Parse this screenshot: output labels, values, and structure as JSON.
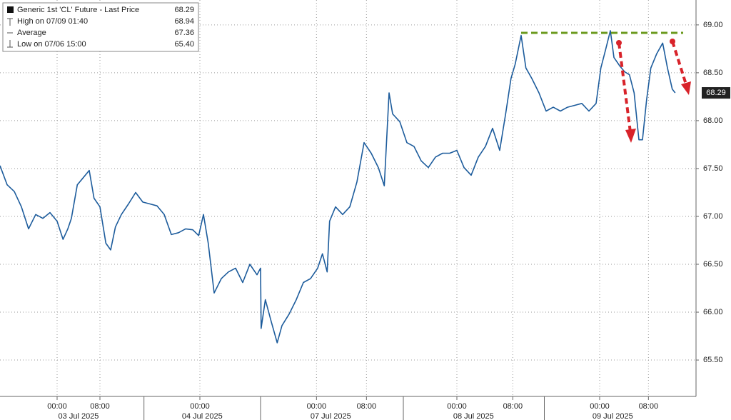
{
  "chart_data": {
    "type": "line",
    "series": [
      {
        "name": "Generic 1st 'CL' Future - Last Price",
        "color": "#1d5c9c",
        "values": [
          67.53,
          67.33,
          67.26,
          67.1,
          66.87,
          67.02,
          66.98,
          67.04,
          66.95,
          66.76,
          66.87,
          66.98,
          67.33,
          67.39,
          67.48,
          67.19,
          67.1,
          66.72,
          66.65,
          66.89,
          67.02,
          67.13,
          67.25,
          67.15,
          67.13,
          67.11,
          67.02,
          66.81,
          66.83,
          66.87,
          66.86,
          66.8,
          67.02,
          66.72,
          66.2,
          66.35,
          66.42,
          66.46,
          66.31,
          66.5,
          66.39,
          66.46,
          65.83,
          66.13,
          65.9,
          65.68,
          65.86,
          65.98,
          66.13,
          66.31,
          66.35,
          66.46,
          66.61,
          66.42,
          66.95,
          67.1,
          67.02,
          67.1,
          67.36,
          67.77,
          67.66,
          67.51,
          67.32,
          68.29,
          68.07,
          67.99,
          67.77,
          67.73,
          67.58,
          67.51,
          67.62,
          67.66,
          67.66,
          67.69,
          67.51,
          67.43,
          67.62,
          67.73,
          67.92,
          67.69,
          68.07,
          68.44,
          68.59,
          68.89,
          68.55,
          68.44,
          68.29,
          68.1,
          68.14,
          68.1,
          68.14,
          68.16,
          68.18,
          68.1,
          68.18,
          68.55,
          68.74,
          68.94,
          68.66,
          68.57,
          68.51,
          68.48,
          68.29,
          67.8,
          67.8,
          68.22,
          68.55,
          68.7,
          68.81,
          68.55,
          68.33,
          68.29
        ]
      }
    ],
    "x": [
      -9.6,
      -8.4,
      -7.2,
      -6.0,
      -4.8,
      -3.6,
      -2.4,
      -1.2,
      0,
      1.0,
      1.8,
      2.4,
      3.4,
      4.2,
      5.4,
      6.2,
      7.2,
      8.2,
      9.0,
      9.8,
      10.8,
      12.0,
      13.2,
      14.4,
      15.6,
      16.8,
      18.0,
      19.2,
      20.4,
      21.6,
      22.8,
      23.8,
      24.6,
      25.4,
      26.4,
      27.6,
      28.8,
      30.0,
      31.2,
      32.4,
      33.6,
      34.2,
      34.3,
      35.0,
      36.0,
      37.0,
      37.8,
      39.0,
      40.2,
      41.4,
      42.6,
      43.8,
      44.6,
      45.4,
      45.8,
      46.8,
      48.0,
      49.2,
      50.4,
      51.6,
      52.8,
      54.0,
      55.0,
      55.8,
      56.4,
      57.6,
      58.8,
      60.0,
      61.2,
      62.4,
      63.6,
      64.8,
      66.0,
      67.2,
      68.4,
      69.6,
      70.8,
      72.0,
      73.2,
      74.4,
      75.4,
      76.3,
      77.0,
      78.0,
      78.8,
      79.8,
      81.0,
      82.2,
      83.4,
      84.6,
      85.8,
      87.0,
      88.2,
      89.4,
      90.6,
      91.4,
      92.2,
      93.0,
      93.6,
      94.6,
      95.4,
      96.2,
      97.0,
      97.8,
      98.4,
      99.1,
      99.8,
      100.8,
      101.8,
      102.6,
      103.4,
      103.9
    ],
    "xlim": [
      -9.6,
      107.4
    ],
    "xticks": [
      {
        "value": 0,
        "label": "00:00"
      },
      {
        "value": 7.2,
        "label": "08:00"
      },
      {
        "value": 24,
        "label": "00:00"
      },
      {
        "value": 43.6,
        "label": "00:00"
      },
      {
        "value": 52,
        "label": "08:00"
      },
      {
        "value": 67.2,
        "label": "00:00"
      },
      {
        "value": 76.6,
        "label": "08:00"
      },
      {
        "value": 91.2,
        "label": "00:00"
      },
      {
        "value": 99.4,
        "label": "08:00"
      }
    ],
    "date_labels": [
      {
        "value": 3.6,
        "label": "03 Jul 2025"
      },
      {
        "value": 24.4,
        "label": "04 Jul 2025"
      },
      {
        "value": 46,
        "label": "07 Jul 2025"
      },
      {
        "value": 70,
        "label": "08 Jul 2025"
      },
      {
        "value": 93.4,
        "label": "09 Jul 2025"
      }
    ],
    "date_separators": [
      14.6,
      34.2,
      58.2,
      81.9
    ],
    "ylim": [
      65.12,
      69.26
    ],
    "yticks": [
      {
        "value": 65.5,
        "label": "65.50"
      },
      {
        "value": 66,
        "label": "66.00"
      },
      {
        "value": 66.5,
        "label": "66.50"
      },
      {
        "value": 67,
        "label": "67.00"
      },
      {
        "value": 67.5,
        "label": "67.50"
      },
      {
        "value": 68,
        "label": "68.00"
      },
      {
        "value": 68.5,
        "label": "68.50"
      },
      {
        "value": 69,
        "label": "69.00"
      }
    ],
    "grid": true,
    "last_price": 68.29,
    "stats": [
      {
        "label": "High on 07/09 01:40",
        "value": 68.94
      },
      {
        "label": "Average",
        "value": 67.36
      },
      {
        "label": "Low on 07/06 15:00",
        "value": {
          "value": 65.4,
          "label": "65.40"
        }
      }
    ]
  }
}
